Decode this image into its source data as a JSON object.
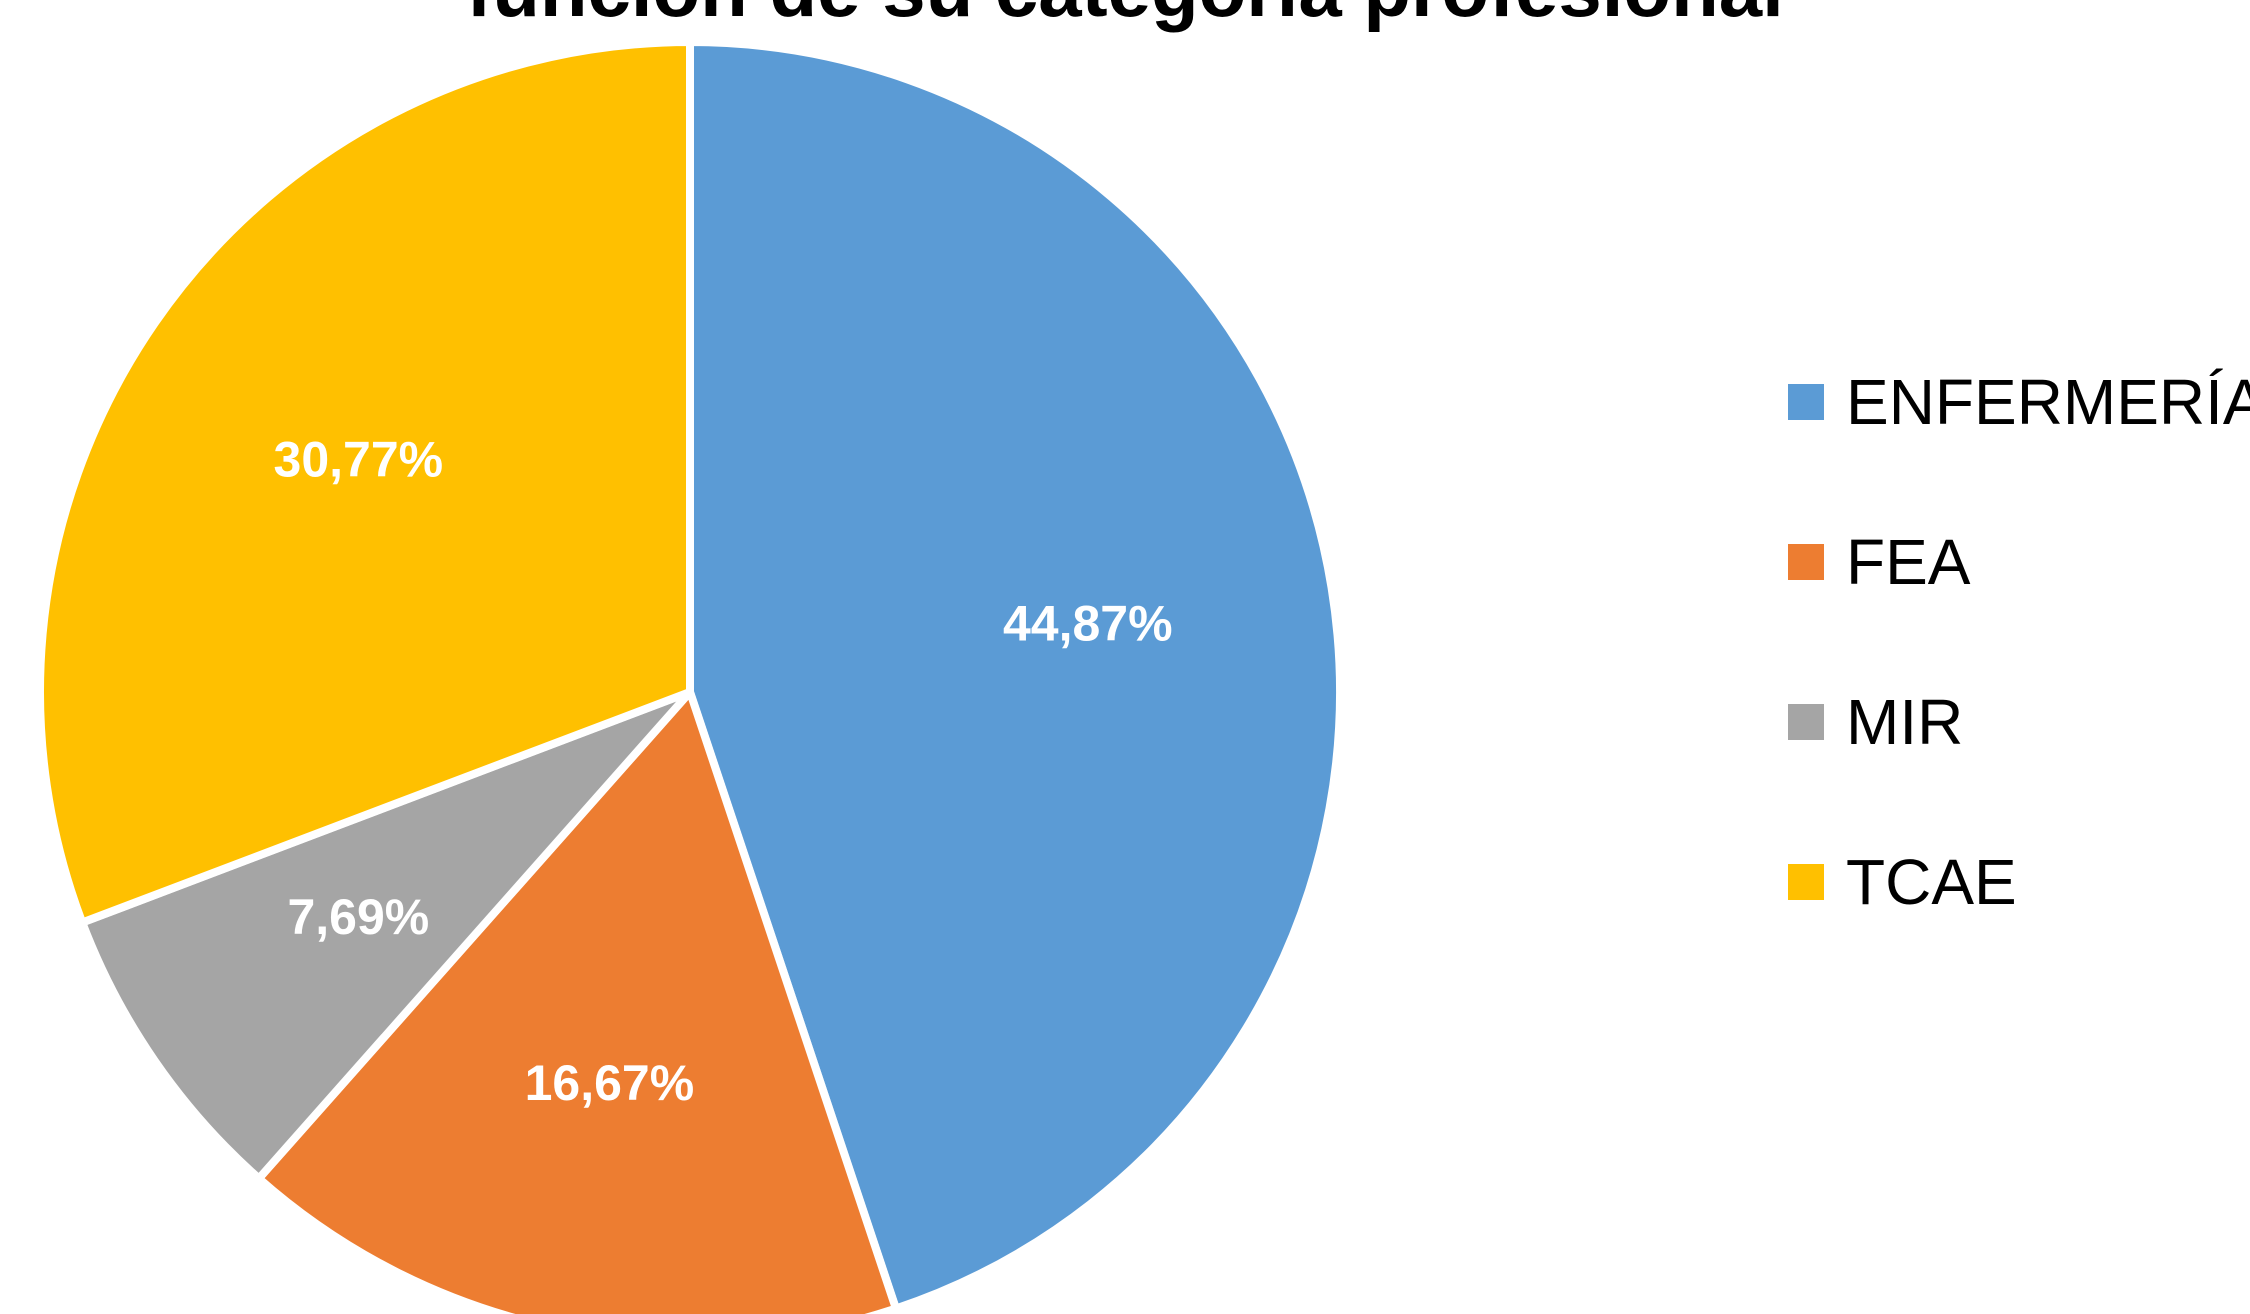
{
  "chart_data": {
    "type": "pie",
    "title": "función de su categoría profesional",
    "series": [
      {
        "name": "ENFERMERÍA",
        "value": 44.87,
        "label": "44,87%",
        "color": "#5B9BD5"
      },
      {
        "name": "FEA",
        "value": 16.67,
        "label": "16,67%",
        "color": "#ED7D31"
      },
      {
        "name": "MIR",
        "value": 7.69,
        "label": "7,69%",
        "color": "#A5A5A5"
      },
      {
        "name": "TCAE",
        "value": 30.77,
        "label": "30,77%",
        "color": "#FFC000"
      }
    ],
    "legend_placement": "right",
    "start_direction": "12 o'clock, clockwise"
  }
}
